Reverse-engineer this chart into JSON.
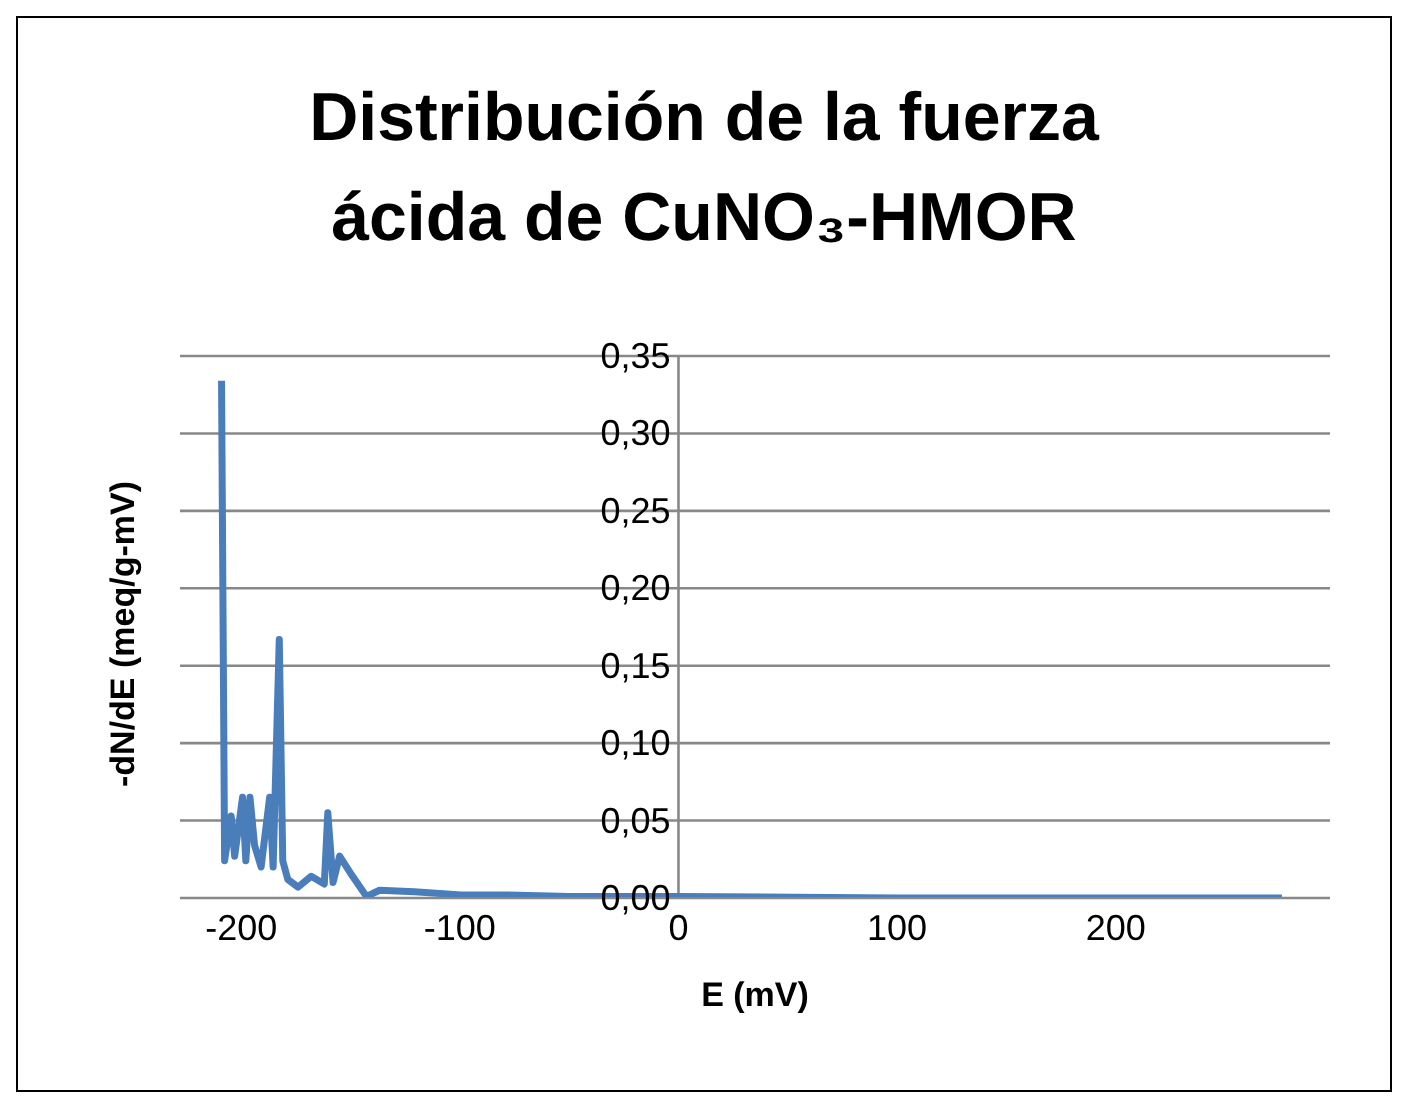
{
  "chart_data": {
    "type": "line",
    "title": "Distribución de la fuerza ácida de CuNO₃-HMOR",
    "xlabel": "E (mV)",
    "ylabel": "-dN/dE (meq/g-mV)",
    "series": [
      {
        "color": "#4a7ebb",
        "x": [
          -209,
          -207.6,
          -204.6,
          -203,
          -199.4,
          -197.9,
          -196,
          -193.9,
          -190.9,
          -187,
          -185.4,
          -182.6,
          -181,
          -178.7,
          -174,
          -168,
          -162,
          -160.4,
          -158,
          -155,
          -150,
          -142.7,
          -136.7,
          -120.8,
          -99.5,
          -81,
          -50,
          0,
          100,
          276
        ],
        "values": [
          0.334,
          0.024,
          0.053,
          0.027,
          0.065,
          0.024,
          0.065,
          0.034,
          0.02,
          0.065,
          0.02,
          0.167,
          0.024,
          0.012,
          0.007,
          0.014,
          0.009,
          0.055,
          0.01,
          0.027,
          0.016,
          0.001,
          0.005,
          0.004,
          0.002,
          0.002,
          0.001,
          0.001,
          0,
          0
        ]
      }
    ],
    "xlim": [
      -228,
      298
    ],
    "xticks": [
      -200,
      -100,
      0,
      100,
      200
    ],
    "ylim": [
      0,
      0.35
    ],
    "yticks": [
      {
        "value": 0,
        "label": "0,00"
      },
      {
        "value": 0.05,
        "label": "0,05"
      },
      {
        "value": 0.1,
        "label": "0,10"
      },
      {
        "value": 0.15,
        "label": "0,15"
      },
      {
        "value": 0.2,
        "label": "0,20"
      },
      {
        "value": 0.25,
        "label": "0,25"
      },
      {
        "value": 0.3,
        "label": "0,30"
      },
      {
        "value": 0.35,
        "label": "0,35"
      }
    ],
    "grid": "y",
    "legend": false,
    "marker": "none",
    "line_style": "solid"
  }
}
